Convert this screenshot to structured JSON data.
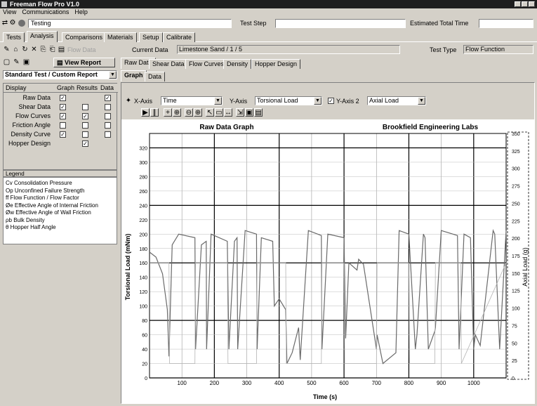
{
  "window": {
    "title": "Freeman Flow Pro V1.0"
  },
  "menu": {
    "items": [
      "View",
      "Communications",
      "Help"
    ]
  },
  "status_bar": {
    "state_value": "Testing",
    "test_step_label": "Test Step",
    "test_step_value": "",
    "elapsed_label": "Estimated Total Time",
    "elapsed_value": ""
  },
  "main_tabs": [
    "Tests",
    "Analysis",
    "Comparisons",
    "Materials",
    "Setup",
    "Calibrate"
  ],
  "analysis_toolbar": {
    "flow_data_label": "Flow Data",
    "current_data_label": "Current Data",
    "current_data_value": "Limestone Sand / 1 / 5",
    "test_type_label": "Test Type",
    "test_type_value": "Flow Function"
  },
  "report": {
    "view_report_label": "View Report",
    "template_value": "Standard Test / Custom Report"
  },
  "view_tabs": [
    "Raw Data",
    "Shear Data",
    "Flow Curves",
    "Density",
    "Hopper Design"
  ],
  "sub_tabs": [
    "Graph",
    "Data"
  ],
  "result_grid": {
    "headers": [
      "Display",
      "Graph",
      "Results",
      "Data"
    ],
    "rows": [
      {
        "name": "Raw Data",
        "graph": true,
        "results": null,
        "data": true
      },
      {
        "name": "Shear Data",
        "graph": true,
        "results": false,
        "data": false
      },
      {
        "name": "Flow Curves",
        "graph": true,
        "results": true,
        "data": false
      },
      {
        "name": "Friction Angle",
        "graph": false,
        "results": false,
        "data": false
      },
      {
        "name": "Density Curve",
        "graph": true,
        "results": false,
        "data": false
      },
      {
        "name": "Hopper Design",
        "graph": null,
        "results": true,
        "data": null
      }
    ]
  },
  "legend": {
    "title": "Legend",
    "items": [
      "Cv  Consolidation Pressure",
      "Op  Unconfined Failure Strength",
      "ff  Flow Function / Flow Factor",
      "Øe  Effective Angle of Internal Friction",
      "Øw  Effective Angle of Wall Friction",
      "ρb  Bulk Density",
      "θ   Hopper Half Angle"
    ]
  },
  "graph_controls": {
    "x_axis_label": "X-Axis",
    "x_axis_value": "Time",
    "y_axis_label": "Y-Axis",
    "y_axis_value": "Torsional Load",
    "y2_axis_label": "Y-Axis 2",
    "y2_axis_value": "Axial Load",
    "y2_enabled": true
  },
  "chart_data": {
    "type": "line",
    "title": "Raw Data Graph",
    "subtitle": "Brookfield Engineering Labs",
    "xlabel": "Time (s)",
    "ylabel": "Torsional Load (mNm)",
    "y2label": "Axial Load (g)",
    "xlim": [
      0,
      1100
    ],
    "ylim": [
      0,
      340
    ],
    "y2lim": [
      0,
      350
    ],
    "x_ticks": [
      100,
      200,
      300,
      400,
      500,
      600,
      700,
      800,
      900,
      1000
    ],
    "y_ticks": [
      0,
      20,
      40,
      60,
      80,
      100,
      120,
      140,
      160,
      180,
      200,
      220,
      240,
      260,
      280,
      300,
      320
    ],
    "y2_ticks": [
      0,
      25,
      50,
      75,
      100,
      125,
      150,
      175,
      200,
      225,
      250,
      275,
      300,
      325,
      350
    ],
    "series": [
      {
        "color": "#6a6a6a",
        "x": [
          0,
          20,
          40,
          55,
          60,
          70,
          90,
          140,
          142,
          160,
          175,
          176,
          190,
          240,
          245,
          262,
          270,
          272,
          295,
          330,
          332,
          345,
          380,
          385,
          400,
          420,
          424,
          440,
          460,
          465,
          490,
          530,
          532,
          550,
          600,
          605,
          615,
          640,
          645,
          660,
          700,
          702,
          720,
          760,
          770,
          800,
          820,
          825,
          845,
          850,
          860,
          880,
          882,
          900,
          950,
          955,
          970,
          990,
          1000,
          1005,
          1020,
          1060,
          1065,
          1080,
          1100
        ],
        "y": [
          175,
          168,
          145,
          95,
          30,
          185,
          200,
          195,
          40,
          185,
          190,
          40,
          200,
          190,
          40,
          190,
          195,
          40,
          205,
          200,
          40,
          195,
          190,
          100,
          110,
          95,
          20,
          35,
          70,
          25,
          205,
          198,
          40,
          200,
          195,
          55,
          160,
          150,
          165,
          158,
          40,
          60,
          20,
          35,
          205,
          200,
          40,
          60,
          200,
          195,
          40,
          65,
          70,
          205,
          198,
          40,
          200,
          195,
          40,
          60,
          45,
          205,
          200,
          40,
          205
        ]
      },
      {
        "color": "#b4b4b4",
        "x": [
          0,
          60,
          62,
          140,
          142,
          240,
          242,
          330,
          332,
          420,
          422,
          530,
          532,
          600,
          602,
          700,
          702,
          800,
          802,
          880,
          882,
          960,
          962,
          1100
        ],
        "y": [
          160,
          160,
          20,
          20,
          160,
          160,
          20,
          20,
          160,
          160,
          20,
          20,
          160,
          160,
          20,
          20,
          160,
          160,
          20,
          20,
          160,
          160,
          20,
          160
        ]
      }
    ],
    "grid": true,
    "legend": "none"
  }
}
